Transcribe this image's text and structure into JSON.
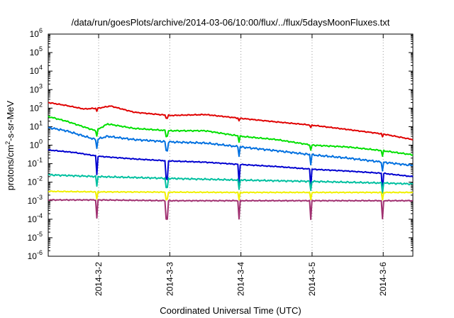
{
  "chart_data": {
    "type": "line",
    "title": "/data/run/goesPlots/archive/2014-03-06/10:00/flux/../flux/5daysMoonFluxes.txt",
    "xlabel": "Coordinated Universal Time (UTC)",
    "ylabel": "protons/cm2-s-sr-MeV",
    "ylabel_parts": {
      "pre": "protons/cm",
      "sup": "2",
      "post": "-s-sr-MeV"
    },
    "yscale": "log",
    "ylim_exp": [
      -6,
      6
    ],
    "y_tick_labels": [
      {
        "exp": -6,
        "base": "10",
        "sup": "-6"
      },
      {
        "exp": -5,
        "base": "10",
        "sup": "-5"
      },
      {
        "exp": -4,
        "base": "10",
        "sup": "-4"
      },
      {
        "exp": -3,
        "base": "10",
        "sup": "-3"
      },
      {
        "exp": -2,
        "base": "10",
        "sup": "-2"
      },
      {
        "exp": -1,
        "base": "10",
        "sup": "-1"
      },
      {
        "exp": 0,
        "base": "10",
        "sup": "0"
      },
      {
        "exp": 1,
        "base": "10",
        "sup": "1"
      },
      {
        "exp": 2,
        "base": "10",
        "sup": "2"
      },
      {
        "exp": 3,
        "base": "10",
        "sup": "3"
      },
      {
        "exp": 4,
        "base": "10",
        "sup": "4"
      },
      {
        "exp": 5,
        "base": "10",
        "sup": "5"
      },
      {
        "exp": 6,
        "base": "10",
        "sup": "6"
      }
    ],
    "xlim": [
      "2014-03-01T07:00",
      "2014-03-06T10:00"
    ],
    "x_ticks": [
      {
        "label": "2014-3-2",
        "date": "2014-03-02T00:00"
      },
      {
        "label": "2014-3-3",
        "date": "2014-03-03T00:00"
      },
      {
        "label": "2014-3-4",
        "date": "2014-03-04T00:00"
      },
      {
        "label": "2014-3-5",
        "date": "2014-03-05T00:00"
      },
      {
        "label": "2014-3-6",
        "date": "2014-03-06T00:00"
      }
    ],
    "grid": "vertical dotted at x ticks",
    "legend": "none",
    "dropout_dates": [
      "2014-03-01T23:30",
      "2014-03-02T23:00",
      "2014-03-03T23:20",
      "2014-03-04T23:40",
      "2014-03-05T23:40"
    ],
    "series": [
      {
        "color": "#e00000",
        "x": [
          "2014-03-01T07:00",
          "2014-03-01T13:00",
          "2014-03-01T19:00",
          "2014-03-02T00:00",
          "2014-03-02T04:00",
          "2014-03-02T12:00",
          "2014-03-03T00:00",
          "2014-03-03T12:00",
          "2014-03-04T00:00",
          "2014-03-04T12:00",
          "2014-03-05T00:00",
          "2014-03-05T12:00",
          "2014-03-06T00:00",
          "2014-03-06T10:00"
        ],
        "y": [
          200,
          140,
          90,
          100,
          130,
          60,
          40,
          45,
          28,
          18,
          12,
          7,
          4,
          2
        ]
      },
      {
        "color": "#00e000",
        "x": [
          "2014-03-01T07:00",
          "2014-03-01T13:00",
          "2014-03-01T23:00",
          "2014-03-02T03:00",
          "2014-03-02T12:00",
          "2014-03-03T00:00",
          "2014-03-03T12:00",
          "2014-03-04T00:00",
          "2014-03-04T12:00",
          "2014-03-05T00:00",
          "2014-03-05T12:00",
          "2014-03-06T00:00",
          "2014-03-06T10:00"
        ],
        "y": [
          35,
          20,
          6,
          14,
          8,
          6,
          6,
          3,
          2,
          1,
          0.8,
          0.5,
          0.3
        ]
      },
      {
        "color": "#0070e0",
        "x": [
          "2014-03-01T07:00",
          "2014-03-01T13:00",
          "2014-03-01T23:00",
          "2014-03-02T03:00",
          "2014-03-02T12:00",
          "2014-03-03T00:00",
          "2014-03-03T12:00",
          "2014-03-04T00:00",
          "2014-03-04T12:00",
          "2014-03-05T00:00",
          "2014-03-05T12:00",
          "2014-03-06T00:00",
          "2014-03-06T10:00"
        ],
        "y": [
          9,
          6,
          2,
          3,
          2,
          1.5,
          1.3,
          0.8,
          0.5,
          0.3,
          0.2,
          0.12,
          0.08
        ]
      },
      {
        "color": "#0000d0",
        "x": [
          "2014-03-01T07:00",
          "2014-03-01T16:00",
          "2014-03-02T00:00",
          "2014-03-02T12:00",
          "2014-03-03T00:00",
          "2014-03-03T12:00",
          "2014-03-04T00:00",
          "2014-03-04T12:00",
          "2014-03-05T00:00",
          "2014-03-05T12:00",
          "2014-03-06T00:00",
          "2014-03-06T10:00"
        ],
        "y": [
          0.55,
          0.4,
          0.25,
          0.18,
          0.14,
          0.12,
          0.09,
          0.07,
          0.05,
          0.04,
          0.03,
          0.02
        ]
      },
      {
        "color": "#00c0a0",
        "x": [
          "2014-03-01T07:00",
          "2014-03-02T00:00",
          "2014-03-03T00:00",
          "2014-03-04T00:00",
          "2014-03-05T00:00",
          "2014-03-06T00:00",
          "2014-03-06T10:00"
        ],
        "y": [
          0.025,
          0.02,
          0.016,
          0.013,
          0.011,
          0.009,
          0.008
        ]
      },
      {
        "color": "#f0f000",
        "x": [
          "2014-03-01T07:00",
          "2014-03-02T00:00",
          "2014-03-03T00:00",
          "2014-03-04T00:00",
          "2014-03-05T00:00",
          "2014-03-06T00:00",
          "2014-03-06T10:00"
        ],
        "y": [
          0.0032,
          0.003,
          0.0029,
          0.0028,
          0.0028,
          0.0028,
          0.0028
        ]
      },
      {
        "color": "#a03070",
        "x": [
          "2014-03-01T07:00",
          "2014-03-02T00:00",
          "2014-03-03T00:00",
          "2014-03-04T00:00",
          "2014-03-05T00:00",
          "2014-03-06T00:00",
          "2014-03-06T10:00"
        ],
        "y": [
          0.0011,
          0.0011,
          0.001,
          0.001,
          0.001,
          0.001,
          0.001
        ]
      }
    ]
  }
}
